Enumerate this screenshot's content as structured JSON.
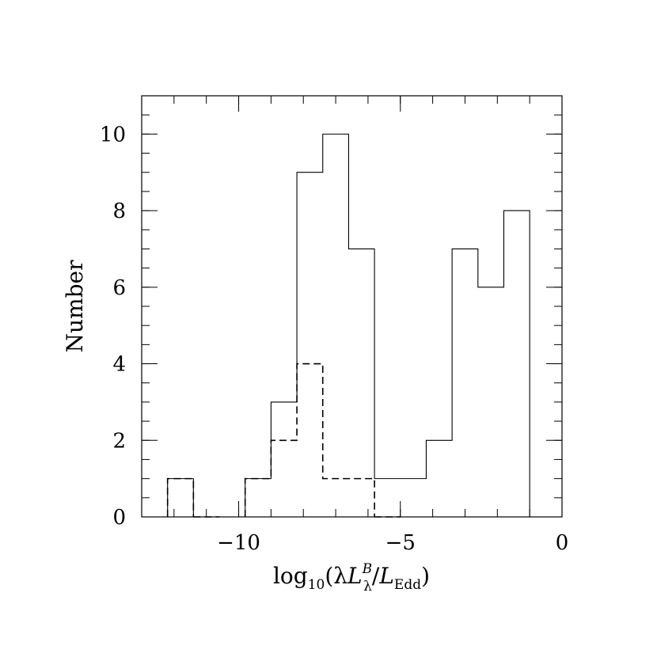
{
  "chart_data": {
    "type": "bar",
    "histogram": true,
    "xlim": [
      -13,
      0
    ],
    "ylim": [
      0,
      11
    ],
    "grid": false,
    "x_ticks": [
      {
        "value": -10,
        "label": "−10"
      },
      {
        "value": -5,
        "label": "−5"
      },
      {
        "value": 0,
        "label": "0"
      }
    ],
    "y_ticks": [
      {
        "value": 0,
        "label": "0"
      },
      {
        "value": 2,
        "label": "2"
      },
      {
        "value": 4,
        "label": "4"
      },
      {
        "value": 6,
        "label": "6"
      },
      {
        "value": 8,
        "label": "8"
      },
      {
        "value": 10,
        "label": "10"
      }
    ],
    "ylabel": "Number",
    "xlabel": {
      "prefix": "log",
      "prefix_sub": "10",
      "open": "(λ",
      "L1": "L",
      "L1_sup": "B",
      "L1_sub": "λ",
      "slash": "/",
      "L2": "L",
      "L2_sub": "Edd",
      "close": ")"
    },
    "bin_edges": [
      -12.2,
      -11.4,
      -10.6,
      -9.8,
      -9.0,
      -8.2,
      -7.4,
      -6.6,
      -5.8,
      -5.0,
      -4.2,
      -3.4,
      -2.6,
      -1.8,
      -1.0
    ],
    "series": [
      {
        "style": "solid",
        "values": [
          1,
          0,
          0,
          1,
          3,
          9,
          10,
          7,
          1,
          1,
          2,
          7,
          6,
          8
        ]
      },
      {
        "style": "dashed",
        "values": [
          1,
          0,
          0,
          1,
          2,
          4,
          1,
          1,
          0,
          0,
          0,
          0,
          0,
          0
        ]
      }
    ]
  }
}
